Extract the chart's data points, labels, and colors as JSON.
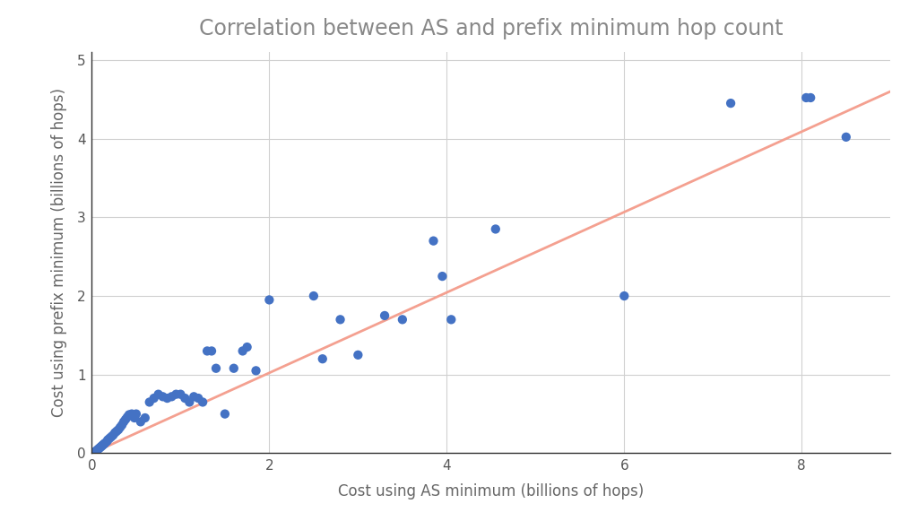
{
  "title": "Correlation between AS and prefix minimum hop count",
  "xlabel": "Cost using AS minimum (billions of hops)",
  "ylabel": "Cost using prefix minimum (billions of hops)",
  "xlim": [
    0,
    9.0
  ],
  "ylim": [
    0,
    5.1
  ],
  "xticks": [
    0,
    2,
    4,
    6,
    8
  ],
  "yticks": [
    0,
    1,
    2,
    3,
    4,
    5
  ],
  "dot_color": "#4472C4",
  "line_color": "#F4A090",
  "background_color": "#ffffff",
  "title_color": "#888888",
  "axis_label_color": "#666666",
  "dot_size": 55,
  "line_width": 2.0,
  "scatter_x": [
    0.02,
    0.03,
    0.04,
    0.05,
    0.06,
    0.07,
    0.08,
    0.09,
    0.1,
    0.11,
    0.12,
    0.13,
    0.14,
    0.15,
    0.17,
    0.18,
    0.2,
    0.22,
    0.24,
    0.26,
    0.28,
    0.3,
    0.32,
    0.34,
    0.36,
    0.38,
    0.4,
    0.42,
    0.45,
    0.48,
    0.5,
    0.55,
    0.6,
    0.65,
    0.7,
    0.75,
    0.8,
    0.85,
    0.9,
    0.95,
    1.0,
    1.05,
    1.1,
    1.15,
    1.2,
    1.25,
    1.3,
    1.35,
    1.4,
    1.5,
    1.6,
    1.7,
    1.75,
    1.85,
    2.0,
    2.5,
    2.6,
    2.8,
    3.0,
    3.3,
    3.5,
    3.85,
    3.95,
    4.05,
    4.55,
    6.0,
    7.2,
    8.05,
    8.1,
    8.5
  ],
  "scatter_y": [
    0.01,
    0.01,
    0.02,
    0.03,
    0.04,
    0.05,
    0.06,
    0.07,
    0.08,
    0.09,
    0.1,
    0.11,
    0.12,
    0.13,
    0.15,
    0.17,
    0.19,
    0.21,
    0.23,
    0.26,
    0.28,
    0.3,
    0.33,
    0.36,
    0.4,
    0.43,
    0.46,
    0.49,
    0.5,
    0.45,
    0.5,
    0.4,
    0.45,
    0.65,
    0.7,
    0.75,
    0.72,
    0.7,
    0.72,
    0.75,
    0.75,
    0.7,
    0.65,
    0.72,
    0.7,
    0.65,
    1.3,
    1.3,
    1.08,
    0.5,
    1.08,
    1.3,
    1.35,
    1.05,
    1.95,
    2.0,
    1.2,
    1.7,
    1.25,
    1.75,
    1.7,
    2.7,
    2.25,
    1.7,
    2.85,
    2.0,
    4.45,
    4.52,
    4.52,
    4.02
  ],
  "line_x": [
    0.0,
    9.0
  ],
  "line_y": [
    0.0,
    4.6
  ]
}
